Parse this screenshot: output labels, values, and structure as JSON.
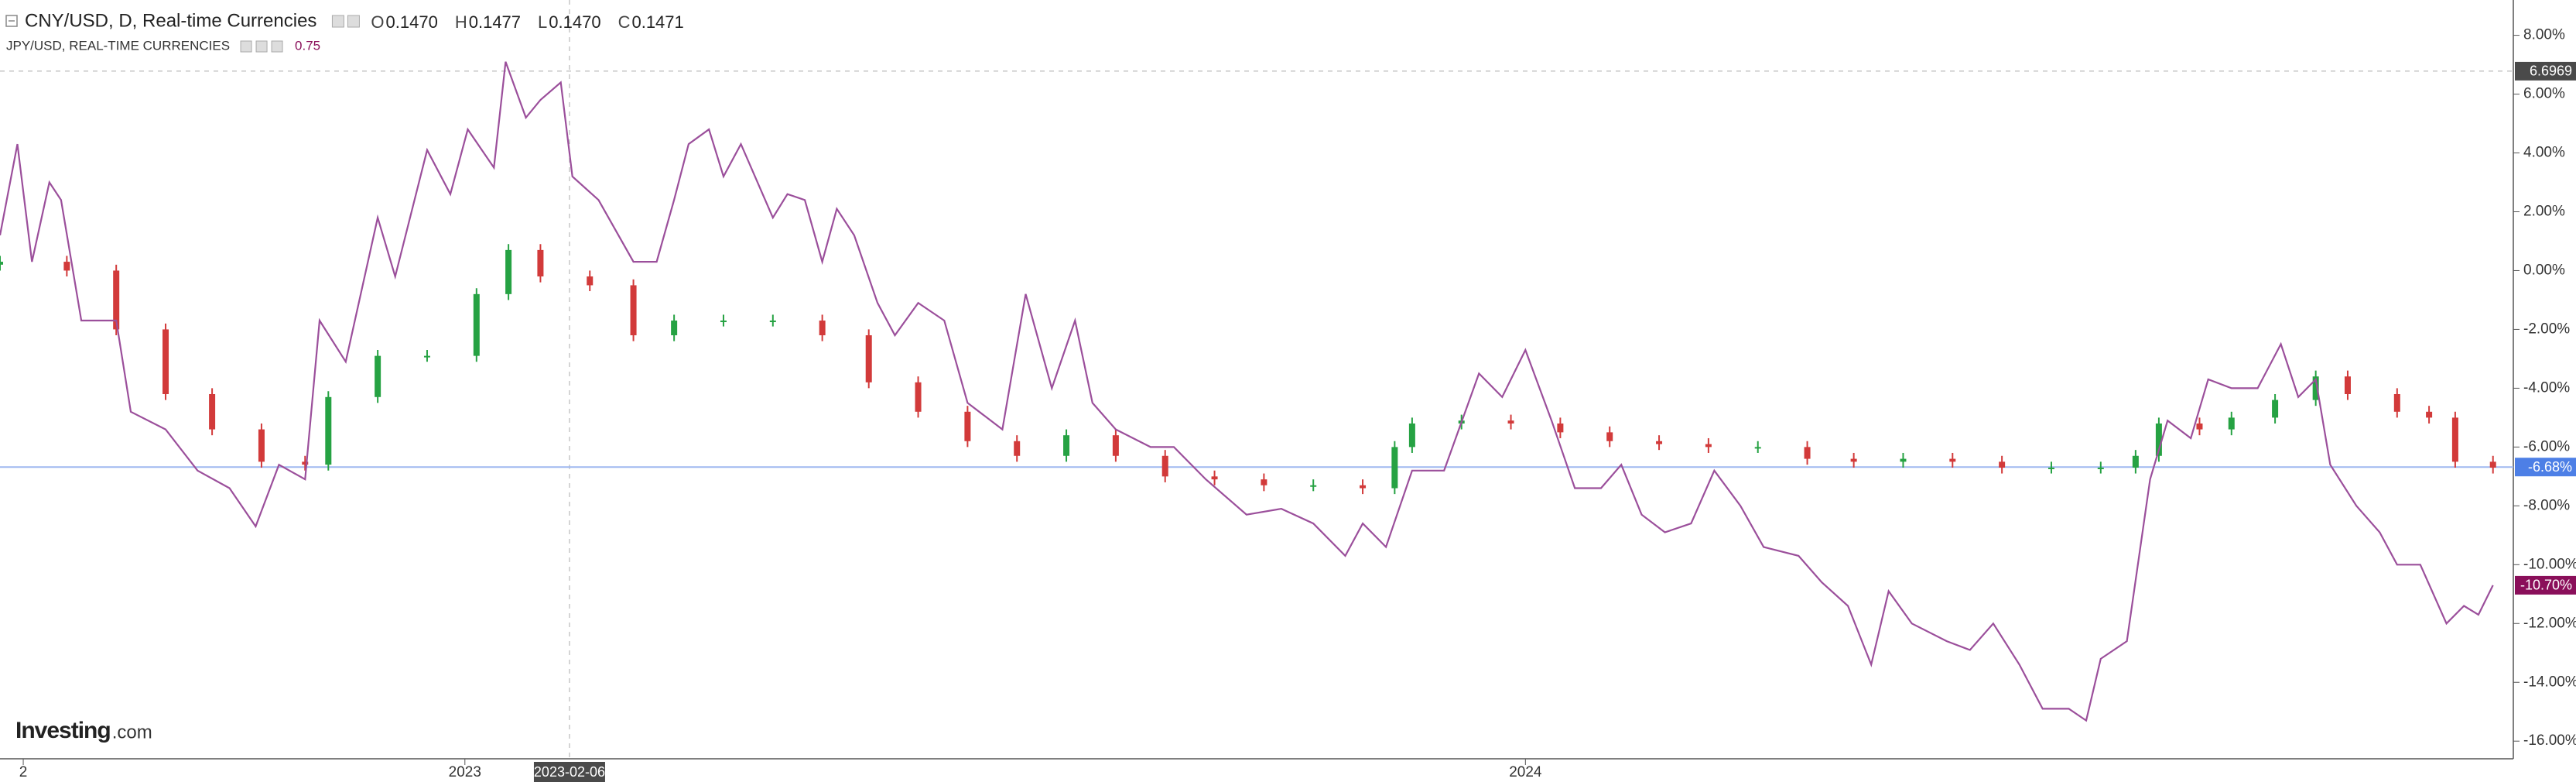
{
  "header": {
    "symbol": "CNY/USD, D, Real-time Currencies",
    "ohlc": [
      {
        "label": "O",
        "value": "0.1470"
      },
      {
        "label": "H",
        "value": "0.1477"
      },
      {
        "label": "L",
        "value": "0.1470"
      },
      {
        "label": "C",
        "value": "0.1471"
      }
    ],
    "compare": "JPY/USD, REAL-TIME CURRENCIES",
    "compare_value": "0.75"
  },
  "watermark": {
    "brand": "Investing",
    "suffix": ".com"
  },
  "chart_data": {
    "type": "candlestick",
    "xlim": [
      0,
      865
    ],
    "xticks": [
      {
        "value": 8,
        "label": "2"
      },
      {
        "value": 160,
        "label": "2023"
      },
      {
        "value": 525,
        "label": "2024"
      }
    ],
    "ylim": [
      -16.6,
      9.2
    ],
    "yticks": [
      {
        "value": 8,
        "label": "8.00%"
      },
      {
        "value": 6,
        "label": "6.00%"
      },
      {
        "value": 4,
        "label": "4.00%"
      },
      {
        "value": 2,
        "label": "2.00%"
      },
      {
        "value": 0,
        "label": "0.00%"
      },
      {
        "value": -2,
        "label": "-2.00%"
      },
      {
        "value": -4,
        "label": "-4.00%"
      },
      {
        "value": -6,
        "label": "-6.00%"
      },
      {
        "value": -8,
        "label": "-8.00%"
      },
      {
        "value": -10,
        "label": "-10.00%"
      },
      {
        "value": -12,
        "label": "-12.00%"
      },
      {
        "value": -14,
        "label": "-14.00%"
      },
      {
        "value": -16,
        "label": "-16.00%"
      }
    ],
    "grid": false,
    "candles": {
      "name": "CNY/USD",
      "up_color": "#26a243",
      "down_color": "#d23a3a",
      "x": [
        0,
        23,
        40,
        57,
        73,
        90,
        105,
        113,
        130,
        147,
        164,
        175,
        186,
        203,
        218,
        232,
        249,
        266,
        283,
        299,
        316,
        333,
        350,
        367,
        384,
        401,
        418,
        435,
        452,
        469,
        480,
        486,
        503,
        520,
        537,
        554,
        571,
        588,
        605,
        622,
        638,
        655,
        672,
        689,
        706,
        723,
        735,
        743,
        757,
        768,
        783,
        797,
        808,
        825,
        836,
        845,
        858
      ],
      "open": [
        0.2,
        0.3,
        0.0,
        -2.0,
        -4.2,
        -5.4,
        -6.5,
        -6.6,
        -4.3,
        -2.9,
        -2.9,
        -0.8,
        0.7,
        -0.2,
        -0.5,
        -2.2,
        -1.7,
        -1.7,
        -1.7,
        -2.2,
        -3.8,
        -4.8,
        -5.8,
        -6.3,
        -5.6,
        -6.3,
        -7.0,
        -7.1,
        -7.3,
        -7.3,
        -7.4,
        -6.0,
        -5.2,
        -5.1,
        -5.2,
        -5.5,
        -5.8,
        -5.9,
        -6.0,
        -6.0,
        -6.4,
        -6.5,
        -6.4,
        -6.5,
        -6.7,
        -6.7,
        -6.7,
        -6.3,
        -5.2,
        -5.4,
        -5.0,
        -4.4,
        -3.6,
        -4.2,
        -4.8,
        -5.0,
        -6.5
      ],
      "high": [
        0.5,
        0.5,
        0.2,
        -1.8,
        -4.0,
        -5.2,
        -6.3,
        -4.1,
        -2.7,
        -2.7,
        -0.6,
        0.9,
        0.9,
        0.0,
        -0.3,
        -1.5,
        -1.5,
        -1.5,
        -1.5,
        -2.0,
        -3.6,
        -4.6,
        -5.6,
        -5.4,
        -5.4,
        -6.1,
        -6.8,
        -6.9,
        -7.1,
        -7.1,
        -5.8,
        -5.0,
        -4.9,
        -4.9,
        -5.0,
        -5.3,
        -5.6,
        -5.7,
        -5.8,
        -5.8,
        -6.2,
        -6.2,
        -6.2,
        -6.3,
        -6.5,
        -6.5,
        -6.1,
        -5.0,
        -5.0,
        -4.8,
        -4.2,
        -3.4,
        -3.4,
        -4.0,
        -4.6,
        -4.8,
        -6.3
      ],
      "low": [
        0.0,
        -0.2,
        -2.2,
        -4.4,
        -5.6,
        -6.7,
        -6.8,
        -6.8,
        -4.5,
        -3.1,
        -3.1,
        -1.0,
        -0.4,
        -0.7,
        -2.4,
        -2.4,
        -1.9,
        -1.9,
        -2.4,
        -4.0,
        -5.0,
        -6.0,
        -6.5,
        -6.5,
        -6.5,
        -7.2,
        -7.3,
        -7.5,
        -7.5,
        -7.6,
        -7.6,
        -6.2,
        -5.4,
        -5.4,
        -5.7,
        -6.0,
        -6.1,
        -6.2,
        -6.2,
        -6.6,
        -6.7,
        -6.7,
        -6.7,
        -6.9,
        -6.9,
        -6.9,
        -6.9,
        -6.5,
        -5.6,
        -5.6,
        -5.2,
        -4.6,
        -4.4,
        -5.0,
        -5.2,
        -6.7,
        -6.9
      ],
      "close": [
        0.3,
        0.0,
        -2.0,
        -4.2,
        -5.4,
        -6.5,
        -6.6,
        -4.3,
        -2.9,
        -2.9,
        -0.8,
        0.7,
        -0.2,
        -0.5,
        -2.2,
        -1.7,
        -1.7,
        -1.7,
        -2.2,
        -3.8,
        -4.8,
        -5.8,
        -6.3,
        -5.6,
        -6.3,
        -7.0,
        -7.1,
        -7.3,
        -7.3,
        -7.4,
        -6.0,
        -5.2,
        -5.1,
        -5.2,
        -5.5,
        -5.8,
        -5.9,
        -6.0,
        -6.0,
        -6.4,
        -6.5,
        -6.4,
        -6.5,
        -6.7,
        -6.7,
        -6.7,
        -6.3,
        -5.2,
        -5.4,
        -5.0,
        -4.4,
        -3.6,
        -4.2,
        -4.8,
        -5.0,
        -6.5,
        -6.7
      ]
    },
    "series": [
      {
        "name": "JPY/USD",
        "color": "#9b4f9b",
        "x": [
          0,
          6,
          11,
          17,
          21,
          28,
          40,
          45,
          57,
          68,
          79,
          88,
          96,
          105,
          110,
          119,
          130,
          136,
          147,
          155,
          161,
          170,
          174,
          181,
          186,
          193,
          197,
          206,
          218,
          226,
          232,
          237,
          244,
          249,
          255,
          266,
          271,
          277,
          283,
          288,
          294,
          302,
          308,
          316,
          325,
          333,
          345,
          353,
          362,
          370,
          376,
          384,
          396,
          404,
          415,
          429,
          441,
          452,
          463,
          469,
          477,
          486,
          497,
          509,
          517,
          525,
          534,
          542,
          551,
          558,
          565,
          573,
          582,
          590,
          599,
          607,
          619,
          627,
          636,
          644,
          650,
          658,
          670,
          678,
          686,
          695,
          703,
          712,
          718,
          723,
          732,
          740,
          746,
          754,
          760,
          768,
          777,
          785,
          791,
          797,
          802,
          811,
          819,
          825,
          833,
          842,
          848,
          853,
          858
        ],
        "values": [
          1.2,
          4.3,
          0.3,
          3.0,
          2.4,
          -1.7,
          -1.7,
          -4.8,
          -5.4,
          -6.8,
          -7.4,
          -8.7,
          -6.6,
          -7.1,
          -1.7,
          -3.1,
          1.8,
          -0.2,
          4.1,
          2.6,
          4.8,
          3.5,
          7.1,
          5.2,
          5.8,
          6.4,
          3.2,
          2.4,
          0.3,
          0.3,
          2.4,
          4.3,
          4.8,
          3.2,
          4.3,
          1.8,
          2.6,
          2.4,
          0.3,
          2.1,
          1.2,
          -1.1,
          -2.2,
          -1.1,
          -1.7,
          -4.5,
          -5.4,
          -0.8,
          -4.0,
          -1.7,
          -4.5,
          -5.4,
          -6.0,
          -6.0,
          -7.1,
          -8.3,
          -8.1,
          -8.6,
          -9.7,
          -8.6,
          -9.4,
          -6.8,
          -6.8,
          -3.5,
          -4.3,
          -2.7,
          -5.1,
          -7.4,
          -7.4,
          -6.6,
          -8.3,
          -8.9,
          -8.6,
          -6.8,
          -8.0,
          -9.4,
          -9.7,
          -10.6,
          -11.4,
          -13.4,
          -10.9,
          -12.0,
          -12.6,
          -12.9,
          -12.0,
          -13.4,
          -14.9,
          -14.9,
          -15.3,
          -13.2,
          -12.6,
          -7.1,
          -5.1,
          -5.7,
          -3.7,
          -4.0,
          -4.0,
          -2.5,
          -4.3,
          -3.7,
          -6.6,
          -8.0,
          -8.9,
          -10.0,
          -10.0,
          -12.0,
          -11.4,
          -11.7,
          -10.7
        ]
      }
    ],
    "markers": [
      {
        "value": -6.68,
        "label": "-6.68%",
        "color": "#4d7fe6"
      },
      {
        "value": -10.7,
        "label": "-10.70%",
        "color": "#8a0f5a"
      }
    ],
    "crosshair": {
      "x": 196,
      "y": 6.78,
      "x_label": "2023-02-06",
      "y_label": "6.6969"
    }
  }
}
